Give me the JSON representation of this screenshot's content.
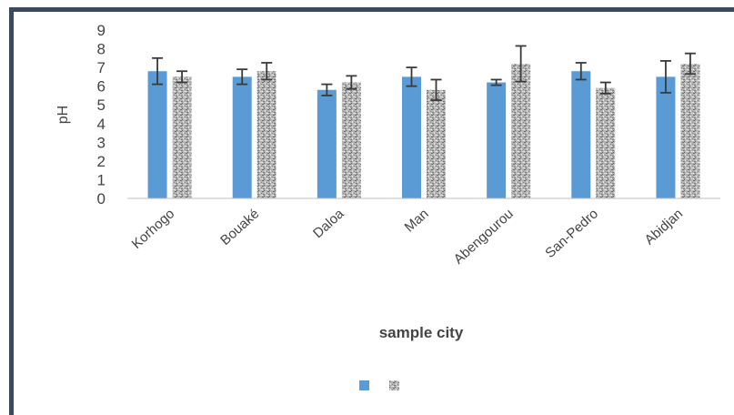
{
  "chart_data": {
    "type": "bar",
    "title": "",
    "xlabel": "sample city",
    "ylabel": "pH",
    "ylim": [
      0,
      9
    ],
    "yticks": [
      0,
      1,
      2,
      3,
      4,
      5,
      6,
      7,
      8,
      9
    ],
    "grid": false,
    "legend_position": "bottom",
    "categories": [
      "Korhogo",
      "Bouaké",
      "Daloa",
      "Man",
      "Abengourou",
      "San-Pedro",
      "Abidjan"
    ],
    "series": [
      {
        "name": "",
        "color": "#5b9bd5",
        "pattern": "solid",
        "values": [
          6.8,
          6.5,
          5.8,
          6.5,
          6.2,
          6.8,
          6.5
        ],
        "errors": [
          0.7,
          0.4,
          0.3,
          0.5,
          0.15,
          0.45,
          0.85
        ]
      },
      {
        "name": "",
        "color": "#9a9a9a",
        "pattern": "granite",
        "values": [
          6.5,
          6.8,
          6.2,
          5.8,
          7.2,
          5.9,
          7.2
        ],
        "errors": [
          0.3,
          0.45,
          0.35,
          0.55,
          0.95,
          0.3,
          0.55
        ]
      }
    ]
  }
}
